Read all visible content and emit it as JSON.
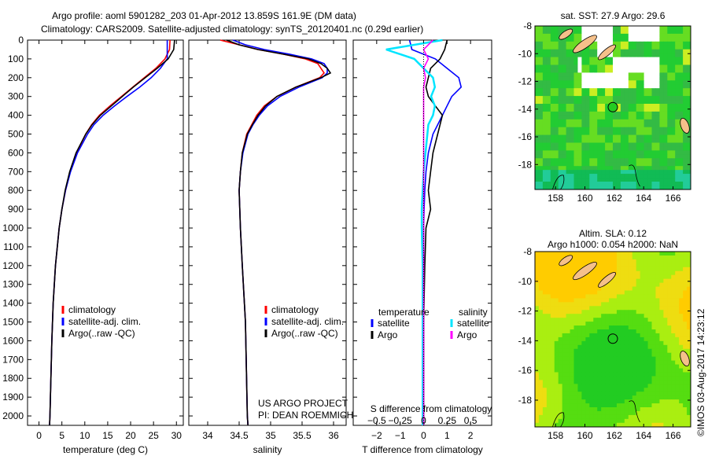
{
  "title_line1": "Argo profile: aoml 5901282_203 01-Apr-2012 13.859S 161.9E (DM data)",
  "title_line2": "Climatology: CARS2009. Satellite-adjusted climatology: synTS_20120401.nc (0.29d earlier)",
  "credit": "US ARGO PROJECT",
  "pi": "PI: DEAN ROEMMICH",
  "timestamp": "©IMOS 03-Aug-2017 14:23:12",
  "colors": {
    "climatology": "#ff0000",
    "satellite": "#0000ff",
    "argo": "#000000",
    "sal_satellite": "#00e5ff",
    "sal_argo": "#ff00ff"
  },
  "chart_data": [
    {
      "type": "line",
      "xlabel": "temperature (deg C)",
      "ylabel": "",
      "xlim": [
        -2.5,
        31.5
      ],
      "ylim": [
        2050,
        0
      ],
      "xticks": [
        "0",
        "5",
        "10",
        "15",
        "20",
        "25",
        "30"
      ],
      "yticks": [
        "0",
        "100",
        "200",
        "300",
        "400",
        "500",
        "600",
        "700",
        "800",
        "900",
        "1000",
        "1100",
        "1200",
        "1300",
        "1400",
        "1500",
        "1600",
        "1700",
        "1800",
        "1900",
        "2000"
      ],
      "legend": [
        "climatology",
        "satellite-adj. clim.",
        "Argo(..raw -QC)"
      ],
      "depth": [
        0,
        50,
        100,
        150,
        200,
        250,
        300,
        350,
        400,
        450,
        500,
        600,
        700,
        800,
        900,
        1000,
        1200,
        1400,
        1600,
        1800,
        2000,
        2050
      ],
      "series": [
        {
          "name": "climatology",
          "values": [
            28.6,
            28.5,
            27.5,
            25.5,
            23,
            20.5,
            18,
            15.5,
            13.2,
            11.5,
            10.2,
            8.2,
            6.8,
            5.8,
            5.0,
            4.4,
            3.6,
            3.1,
            2.8,
            2.6,
            2.4,
            2.3
          ]
        },
        {
          "name": "satellite-adj. clim.",
          "values": [
            28.0,
            28.0,
            28.0,
            26.5,
            24.5,
            22,
            19.2,
            16.5,
            14,
            12,
            10.6,
            8.4,
            6.9,
            5.8,
            5.0,
            4.4,
            3.6,
            3.1,
            2.8,
            2.6,
            2.4,
            2.3
          ]
        },
        {
          "name": "Argo(..raw -QC)",
          "values": [
            29.6,
            29.4,
            28.2,
            25.8,
            23.2,
            20.6,
            18.2,
            15.8,
            13.4,
            11.6,
            10.2,
            8.1,
            6.7,
            5.7,
            5.0,
            4.4,
            3.6,
            3.1,
            2.8,
            2.6,
            2.4,
            2.3
          ]
        }
      ]
    },
    {
      "type": "line",
      "xlabel": "salinity",
      "xlim": [
        33.7,
        36.2
      ],
      "ylim": [
        2050,
        0
      ],
      "xticks": [
        "34",
        "34.5",
        "35",
        "35.5",
        "36"
      ],
      "legend": [
        "climatology",
        "satellite-adj. clim.",
        "Argo(..raw -QC)"
      ],
      "depth": [
        0,
        25,
        50,
        75,
        100,
        125,
        150,
        175,
        200,
        250,
        300,
        350,
        400,
        450,
        500,
        600,
        700,
        800,
        1000,
        1200,
        1500,
        2000,
        2050
      ],
      "series": [
        {
          "name": "climatology",
          "values": [
            34.2,
            34.5,
            34.8,
            35.2,
            35.55,
            35.75,
            35.8,
            35.85,
            35.78,
            35.4,
            35.1,
            34.9,
            34.78,
            34.7,
            34.62,
            34.55,
            34.52,
            34.5,
            34.52,
            34.55,
            34.6,
            34.63,
            34.64
          ]
        },
        {
          "name": "satellite-adj. clim.",
          "values": [
            34.4,
            34.6,
            34.9,
            35.3,
            35.65,
            35.85,
            35.9,
            35.9,
            35.82,
            35.45,
            35.15,
            34.95,
            34.82,
            34.72,
            34.64,
            34.56,
            34.52,
            34.5,
            34.52,
            34.55,
            34.6,
            34.63,
            34.64
          ]
        },
        {
          "name": "Argo(..raw -QC)",
          "values": [
            34.3,
            34.5,
            34.8,
            35.2,
            35.6,
            35.8,
            35.9,
            35.95,
            35.8,
            35.4,
            35.1,
            34.92,
            34.8,
            34.71,
            34.63,
            34.55,
            34.52,
            34.5,
            34.52,
            34.55,
            34.6,
            34.63,
            34.64
          ]
        }
      ]
    },
    {
      "type": "line",
      "xlabel": "T difference from climatology",
      "x2label": "S difference from climatology",
      "xlim": [
        -3,
        2.9
      ],
      "x2lim": [
        -0.75,
        0.725
      ],
      "ylim": [
        2050,
        0
      ],
      "xticks": [
        "-2",
        "-1",
        "0",
        "1",
        "2"
      ],
      "x2ticks": [
        "-0.5",
        "-0.25",
        "0",
        "0.25",
        "0.5"
      ],
      "legend_temperature": {
        "title": "temperature",
        "items": [
          "satellite",
          "Argo"
        ]
      },
      "legend_salinity": {
        "title": "salinity",
        "items": [
          "satellite",
          "Argo"
        ]
      },
      "depth": [
        0,
        50,
        100,
        150,
        200,
        250,
        300,
        350,
        400,
        450,
        500,
        600,
        700,
        800,
        900,
        1000,
        1200,
        1500,
        2000,
        2050
      ],
      "series": [
        {
          "name": "T satellite",
          "values": [
            -0.6,
            -0.5,
            0.5,
            1.0,
            1.5,
            1.6,
            1.2,
            1.0,
            0.8,
            0.6,
            0.4,
            0.2,
            0.1,
            0.05,
            0.02,
            0.0,
            0.0,
            0.0,
            0.0,
            0.0
          ]
        },
        {
          "name": "T Argo",
          "values": [
            1.0,
            0.9,
            0.7,
            0.3,
            0.2,
            0.1,
            0.2,
            0.5,
            0.8,
            0.7,
            0.6,
            0.4,
            0.3,
            0.2,
            0.3,
            0.1,
            0.05,
            0.0,
            0.0,
            0.0
          ]
        },
        {
          "name": "S satellite",
          "values": [
            0.2,
            -0.4,
            -0.1,
            0.0,
            0.1,
            0.12,
            0.08,
            0.12,
            0.1,
            0.05,
            0.04,
            0.02,
            0.0,
            -0.01,
            -0.02,
            -0.02,
            -0.01,
            -0.01,
            -0.01,
            -0.01
          ]
        },
        {
          "name": "S Argo",
          "values": [
            0.1,
            0.0,
            0.05,
            0.0,
            0.02,
            0.0,
            0.0,
            0.0,
            0.0,
            0.0,
            0.0,
            0.0,
            0.0,
            0.0,
            0.0,
            0.0,
            0.0,
            0.0,
            0.0,
            0.0
          ]
        }
      ]
    },
    {
      "type": "heatmap",
      "title": "sat. SST: 27.9 Argo: 29.6",
      "xlim": [
        156.6,
        167.2
      ],
      "ylim": [
        -19.8,
        -8
      ],
      "xticks": [
        "158",
        "160",
        "162",
        "164",
        "166"
      ],
      "yticks": [
        "-8",
        "-10",
        "-12",
        "-14",
        "-16",
        "-18"
      ],
      "marker": {
        "lon": 161.9,
        "lat": -13.859
      }
    },
    {
      "type": "heatmap",
      "title": "Altim. SLA: 0.12",
      "subtitle": "Argo h1000: 0.054 h2000: NaN",
      "xlim": [
        156.6,
        167.2
      ],
      "ylim": [
        -19.8,
        -8
      ],
      "xticks": [
        "158",
        "160",
        "162",
        "164",
        "166"
      ],
      "yticks": [
        "-8",
        "-10",
        "-12",
        "-14",
        "-16",
        "-18"
      ],
      "marker": {
        "lon": 161.9,
        "lat": -13.859
      }
    }
  ]
}
